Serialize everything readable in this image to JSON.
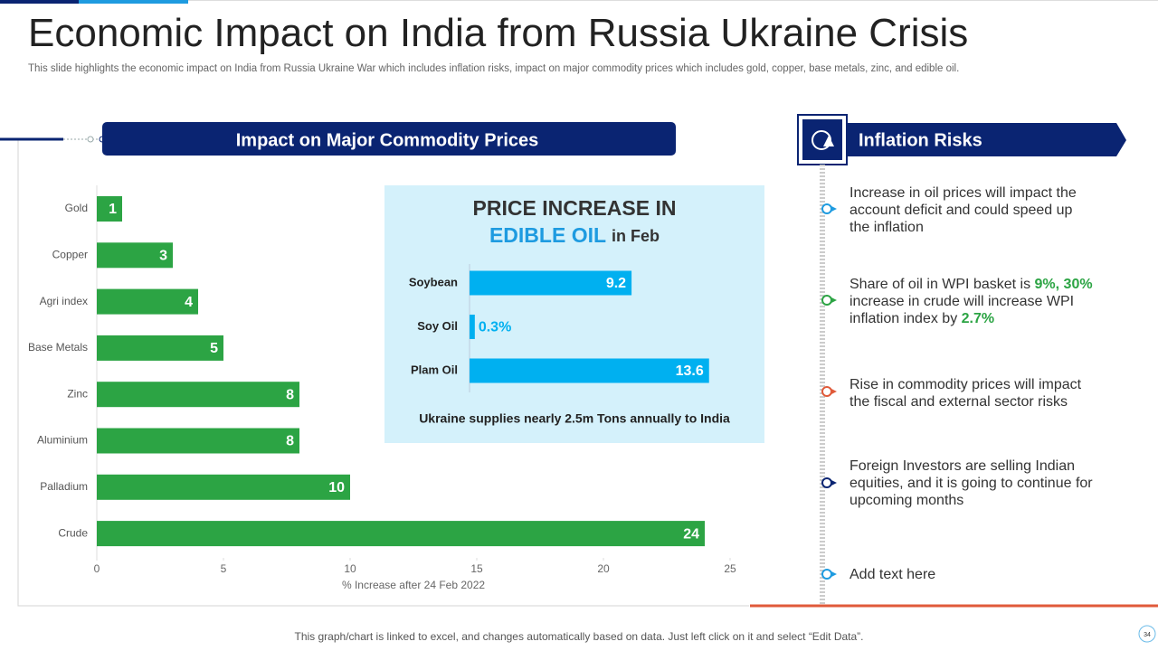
{
  "header": {
    "title": "Economic Impact on India from Russia Ukraine Crisis",
    "subtitle": "This slide highlights the economic impact on India from Russia Ukraine War which includes inflation risks, impact on major commodity prices which includes gold, copper, base metals, zinc, and edible oil."
  },
  "chart_data": [
    {
      "type": "bar",
      "orientation": "horizontal",
      "title": "Impact on Major Commodity Prices",
      "categories": [
        "Gold",
        "Copper",
        "Agri index",
        "Base Metals",
        "Zinc",
        "Aluminium",
        "Palladium",
        "Crude"
      ],
      "values": [
        1,
        3,
        4,
        5,
        8,
        8,
        10,
        24
      ],
      "color": "#2ca444",
      "xlim": [
        0,
        25
      ],
      "xticks": [
        0,
        5,
        10,
        15,
        20,
        25
      ],
      "xlabel": "% Increase after 24 Feb 2022"
    },
    {
      "type": "bar",
      "orientation": "horizontal",
      "title": "PRICE INCREASE IN",
      "subtitle": "EDIBLE OIL",
      "subtitle_suffix": "in Feb",
      "categories": [
        "Soybean",
        "Soy Oil",
        "Plam Oil"
      ],
      "values": [
        9.2,
        0.3,
        13.6
      ],
      "value_labels": [
        "9.2",
        "0.3%",
        "13.6"
      ],
      "color": "#00b0f0",
      "xlim": [
        0,
        15
      ],
      "annotation": "Ukraine supplies nearly 2.5m  Tons annually to India"
    }
  ],
  "inflation": {
    "title": "Inflation Risks",
    "items": [
      [
        "Increase  in oil prices will impact the account deficit and could speed up the inflation"
      ],
      [
        "Share of oil in WPI basket is ",
        "9%, 30%",
        " increase in crude will increase WPI inflation index by ",
        "2.7%"
      ],
      [
        "Rise in commodity prices will impact the fiscal and external  sector risks"
      ],
      [
        "Foreign Investors  are selling Indian equities, and it is going to continue for upcoming months"
      ],
      [
        "Add text here"
      ]
    ]
  },
  "footer": "This graph/chart is linked to excel,  and changes automatically based on data. Just left click on it and select “Edit Data”.",
  "page_number": "34"
}
